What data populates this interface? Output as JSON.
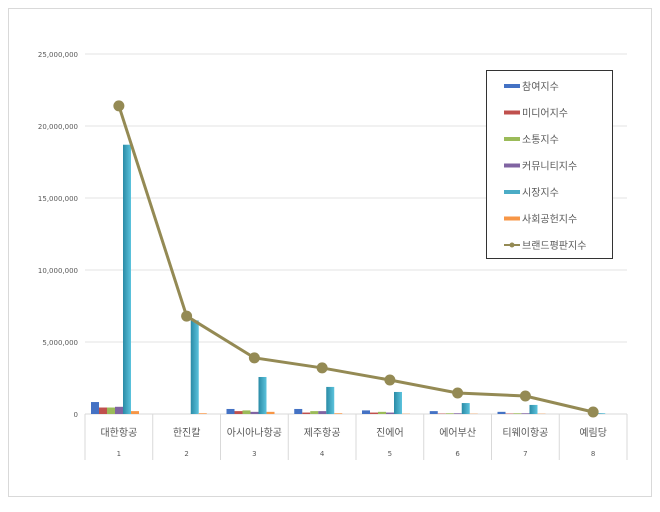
{
  "chart_data": {
    "type": "bar",
    "categories": [
      "대한항공",
      "한진칼",
      "아시아나항공",
      "제주항공",
      "진에어",
      "에어부산",
      "티웨이항공",
      "예림당"
    ],
    "category_numbers": [
      "1",
      "2",
      "3",
      "4",
      "5",
      "6",
      "7",
      "8"
    ],
    "ylim": [
      0,
      25000000
    ],
    "yticks": [
      "0",
      "5,000,000",
      "10,000,000",
      "15,000,000",
      "20,000,000",
      "25,000,000"
    ],
    "grid": true,
    "legend_position": "right",
    "series": [
      {
        "name": "참여지수",
        "color": "#4472C4",
        "values": [
          830000,
          0,
          350000,
          350000,
          250000,
          200000,
          150000,
          0
        ]
      },
      {
        "name": "미디어지수",
        "color": "#C0504D",
        "values": [
          450000,
          0,
          200000,
          100000,
          100000,
          30000,
          30000,
          0
        ]
      },
      {
        "name": "소통지수",
        "color": "#9BBB59",
        "values": [
          450000,
          0,
          250000,
          200000,
          150000,
          50000,
          50000,
          0
        ]
      },
      {
        "name": "커뮤니티지수",
        "color": "#8064A2",
        "values": [
          500000,
          0,
          150000,
          200000,
          100000,
          50000,
          50000,
          0
        ]
      },
      {
        "name": "시장지수",
        "color": "#4BACC6",
        "values": [
          18700000,
          6500000,
          2570000,
          1880000,
          1530000,
          760000,
          630000,
          50000
        ]
      },
      {
        "name": "사회공헌지수",
        "color": "#F79646",
        "values": [
          200000,
          50000,
          150000,
          50000,
          20000,
          20000,
          20000,
          0
        ]
      },
      {
        "name": "브랜드평판지수",
        "color": "#948A54",
        "type": "line",
        "values": [
          21400000,
          6800000,
          3900000,
          3200000,
          2360000,
          1460000,
          1250000,
          140000
        ]
      }
    ]
  }
}
